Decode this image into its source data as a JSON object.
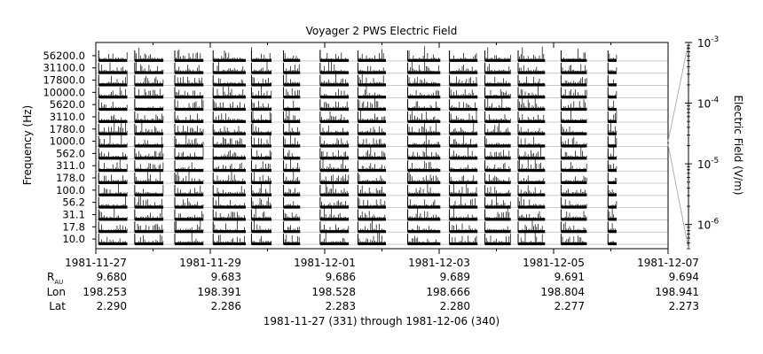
{
  "chart_data": {
    "type": "line",
    "title": "Voyager 2 PWS Electric Field",
    "ylabel": "Frequency (Hz)",
    "colorbar_label": "Electric Field (V/m)",
    "subtitle": "1981-11-27 (331) through 1981-12-06 (340)",
    "xlim": [
      "1981-11-27",
      "1981-12-07"
    ],
    "x_ticks": [
      "1981-11-27",
      "1981-11-29",
      "1981-12-01",
      "1981-12-03",
      "1981-12-05",
      "1981-12-07"
    ],
    "channels": [
      "56200.0",
      "31100.0",
      "17800.0",
      "10000.0",
      "5620.0",
      "3110.0",
      "1780.0",
      "1000.0",
      "562.0",
      "311.0",
      "178.0",
      "100.0",
      "56.2",
      "31.1",
      "17.8",
      "10.0"
    ],
    "colorbar": {
      "scale": "log",
      "range": [
        4e-07,
        0.001
      ],
      "tick_values": [
        0.001,
        0.0001,
        1e-05,
        1e-06
      ],
      "tick_base": "10",
      "tick_exponents": [
        "-3",
        "-4",
        "-5",
        "-6"
      ]
    },
    "ephemeris": {
      "rows": [
        {
          "label": "R",
          "subscript": "AU",
          "values": [
            "9.680",
            "9.683",
            "9.686",
            "9.689",
            "9.691",
            "9.694"
          ]
        },
        {
          "label": "Lon",
          "subscript": "",
          "values": [
            "198.253",
            "198.391",
            "198.528",
            "198.666",
            "198.804",
            "198.941"
          ]
        },
        {
          "label": "Lat",
          "subscript": "",
          "values": [
            "2.290",
            "2.286",
            "2.283",
            "2.280",
            "2.277",
            "2.273"
          ]
        }
      ]
    },
    "data_segments_days": [
      [
        0.05,
        0.55
      ],
      [
        0.68,
        1.18
      ],
      [
        1.38,
        1.88
      ],
      [
        2.05,
        2.62
      ],
      [
        2.72,
        3.07
      ],
      [
        3.28,
        3.57
      ],
      [
        3.92,
        4.42
      ],
      [
        4.58,
        5.07
      ],
      [
        5.45,
        6.02
      ],
      [
        6.18,
        6.67
      ],
      [
        6.8,
        7.25
      ],
      [
        7.38,
        7.85
      ],
      [
        8.13,
        8.58
      ],
      [
        8.95,
        9.1
      ]
    ]
  }
}
